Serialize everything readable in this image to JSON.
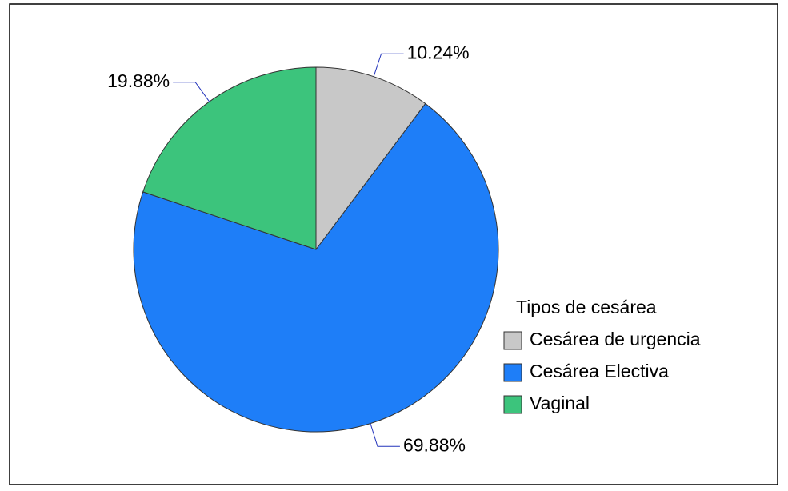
{
  "chart_data": {
    "type": "pie",
    "categories": [
      "Cesárea de urgencia",
      "Cesárea Electiva",
      "Vaginal"
    ],
    "values": [
      10.24,
      69.88,
      19.88
    ],
    "value_labels": [
      "10.24%",
      "69.88%",
      "19.88%"
    ],
    "colors": [
      "#c8c8c8",
      "#1e7ef8",
      "#3cc47c"
    ],
    "legend_title": "Tipos de cesárea"
  }
}
